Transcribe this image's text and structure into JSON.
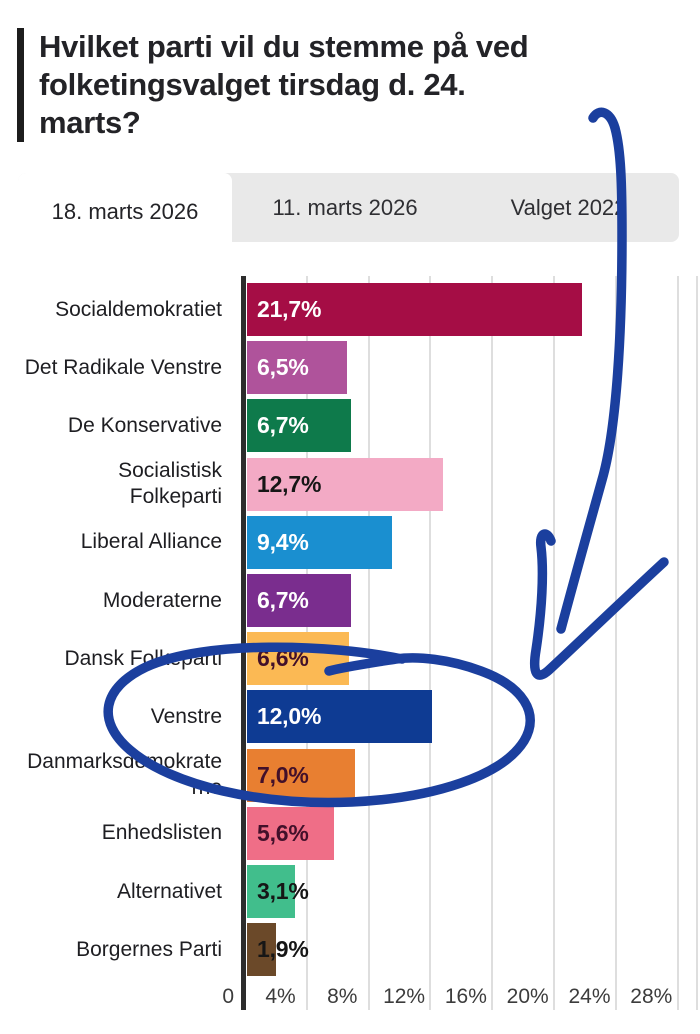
{
  "title": {
    "text": "Hvilket parti vil du stemme på ved folketingsvalget tirsdag d. 24. marts?",
    "lines": [
      "Hvilket parti vil du stemme på ved",
      "folketingsvalget tirsdag d. 24.",
      "marts?"
    ]
  },
  "tabs": [
    {
      "label": "18. marts 2026",
      "active": true
    },
    {
      "label": "11. marts 2026",
      "active": false
    },
    {
      "label": "Valget 2022",
      "active": false
    }
  ],
  "chart_data": {
    "type": "bar",
    "orientation": "horizontal",
    "title": "Hvilket parti vil du stemme på ved folketingsvalget tirsdag d. 24. marts?",
    "categories": [
      "Socialdemokratiet",
      "Det Radikale Venstre",
      "De Konservative",
      "Socialistisk Folkeparti",
      "Liberal Alliance",
      "Moderaterne",
      "Dansk Folkeparti",
      "Venstre",
      "Danmarksdemokraterne",
      "Enhedslisten",
      "Alternativet",
      "Borgernes Parti"
    ],
    "values": [
      21.7,
      6.5,
      6.7,
      12.7,
      9.4,
      6.7,
      6.6,
      12.0,
      7.0,
      5.6,
      3.1,
      1.9
    ],
    "value_labels": [
      "21,7%",
      "6,5%",
      "6,7%",
      "12,7%",
      "9,4%",
      "6,7%",
      "6,6%",
      "12,0%",
      "7,0%",
      "5,6%",
      "3,1%",
      "1,9%"
    ],
    "bar_colors": [
      "#A50D45",
      "#AF539B",
      "#0E7A4B",
      "#F3AAC5",
      "#1A8FD0",
      "#7A2D8E",
      "#FBB954",
      "#0E3B93",
      "#E87F31",
      "#EF6E87",
      "#41BE8C",
      "#6B4929"
    ],
    "value_label_colors": [
      "#FFFFFF",
      "#FFFFFF",
      "#FFFFFF",
      "#161616",
      "#FFFFFF",
      "#FFFFFF",
      "#42102A",
      "#FFFFFF",
      "#42102A",
      "#42102A",
      "#161616",
      "#161616"
    ],
    "x_tick_labels": [
      "0",
      "4%",
      "8%",
      "12%",
      "16%",
      "20%",
      "24%",
      "28%"
    ],
    "x_tick_values": [
      0,
      4,
      8,
      12,
      16,
      20,
      24,
      28
    ],
    "xlim": [
      0,
      29.2
    ],
    "grid": true,
    "legend": "none"
  },
  "annotation": {
    "color": "#1B3F9E",
    "shapes": [
      "hand-drawn arrow pointing down from top right",
      "hand-drawn circle around Venstre row"
    ]
  },
  "colors": {
    "axis": "#2D2D2D",
    "grid": "#DEDEDE",
    "tab_bg": "#E9E9E9",
    "active_tab_bg": "#FFFFFF",
    "accent_bar": "#1D1D1D"
  }
}
